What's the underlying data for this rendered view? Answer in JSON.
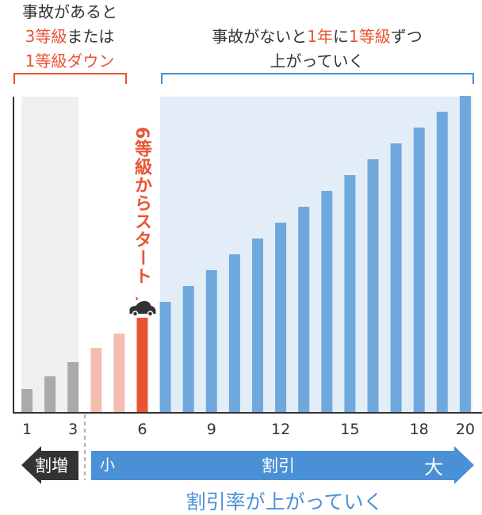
{
  "captions": {
    "left": {
      "line1": "事故があると",
      "line2_red": "3等級",
      "line2_rest": "または",
      "line3_red": "1等級ダウン"
    },
    "right": {
      "p1": "事故がないと",
      "p2_red": "1年",
      "p3": "に",
      "p4_red": "1等級",
      "p5": "ずつ",
      "line2": "上がっていく"
    }
  },
  "start_label": "6等級からスタート",
  "car_icon": "car-icon",
  "arrows": {
    "increase_label": "割増",
    "small_label": "小",
    "discount_label": "割引",
    "large_label": "大"
  },
  "footer": "割引率が上がっていく",
  "colors": {
    "gray": "#aaaaaa",
    "pink": "#f7bcb0",
    "red": "#e95434",
    "blue": "#6fa8dc",
    "arrow_blue": "#4a90d6",
    "dark": "#333333"
  },
  "chart_data": {
    "type": "bar",
    "xlabel": "",
    "ylabel": "",
    "categories": [
      1,
      2,
      3,
      4,
      5,
      6,
      7,
      8,
      9,
      10,
      11,
      12,
      13,
      14,
      15,
      16,
      17,
      18,
      19,
      20
    ],
    "tick_labels": [
      "1",
      "3",
      "6",
      "9",
      "12",
      "15",
      "18",
      "20"
    ],
    "values": [
      1.5,
      2.3,
      3.2,
      4.1,
      5.0,
      6.0,
      7.0,
      8.0,
      9.0,
      10.0,
      11.0,
      12.0,
      13.0,
      14.0,
      15.0,
      16.0,
      17.0,
      18.0,
      19.0,
      20.0
    ],
    "bar_groups": {
      "gray": [
        1,
        2,
        3
      ],
      "pink": [
        4,
        5
      ],
      "red": [
        6
      ],
      "blue": [
        7,
        8,
        9,
        10,
        11,
        12,
        13,
        14,
        15,
        16,
        17,
        18,
        19,
        20
      ]
    },
    "grid": false
  }
}
